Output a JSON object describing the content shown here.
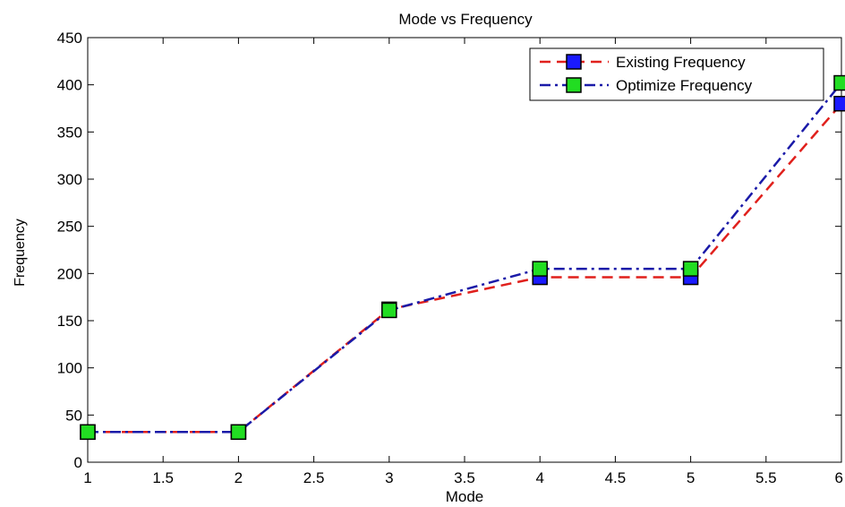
{
  "chart_data": {
    "type": "line",
    "title": "Mode vs Frequency",
    "xlabel": "Mode",
    "ylabel": "Frequency",
    "xlim": [
      1,
      6
    ],
    "ylim": [
      0,
      450
    ],
    "xticks": [
      1,
      1.5,
      2,
      2.5,
      3,
      3.5,
      4,
      4.5,
      5,
      5.5,
      6
    ],
    "yticks": [
      0,
      50,
      100,
      150,
      200,
      250,
      300,
      350,
      400,
      450
    ],
    "grid": false,
    "legend_position": "top-right",
    "series": [
      {
        "name": "Existing Frequency",
        "x": [
          1,
          2,
          3,
          4,
          5,
          6
        ],
        "values": [
          32,
          32,
          162,
          196,
          196,
          380
        ],
        "line_color": "#e0201c",
        "marker_color": "#1a1aff",
        "line_style": "dashed"
      },
      {
        "name": "Optimize Frequency",
        "x": [
          1,
          2,
          3,
          4,
          5,
          6
        ],
        "values": [
          32,
          32,
          161,
          205,
          205,
          402
        ],
        "line_color": "#1a1aa8",
        "marker_color": "#22dd22",
        "line_style": "dash-dot"
      }
    ]
  }
}
